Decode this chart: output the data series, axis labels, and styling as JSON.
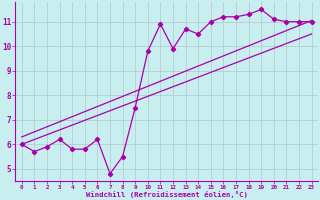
{
  "xlabel": "Windchill (Refroidissement éolien,°C)",
  "bg_color": "#c8eef0",
  "grid_color": "#b0c8cc",
  "line_color": "#aa00aa",
  "x_hours": [
    0,
    1,
    2,
    3,
    4,
    5,
    6,
    7,
    8,
    9,
    10,
    11,
    12,
    13,
    14,
    15,
    16,
    17,
    18,
    19,
    20,
    21,
    22,
    23
  ],
  "temp_data": [
    6.0,
    5.7,
    5.9,
    6.2,
    5.8,
    5.8,
    6.2,
    4.8,
    5.5,
    7.5,
    9.8,
    10.9,
    9.9,
    10.7,
    10.5,
    11.0,
    11.2,
    11.2,
    11.3,
    11.5,
    11.1,
    11.0,
    11.0,
    11.0
  ],
  "reg_line1": [
    [
      0,
      6.0
    ],
    [
      23,
      10.5
    ]
  ],
  "reg_line2": [
    [
      0,
      6.3
    ],
    [
      23,
      11.05
    ]
  ],
  "ylim": [
    4.5,
    11.8
  ],
  "xlim": [
    -0.5,
    23.5
  ],
  "yticks": [
    5,
    6,
    7,
    8,
    9,
    10,
    11
  ],
  "ytick_labels": [
    "5",
    "6",
    "7",
    "8",
    "9",
    "10",
    "11"
  ],
  "xtick_labels": [
    "0",
    "1",
    "2",
    "3",
    "4",
    "5",
    "6",
    "7",
    "8",
    "9",
    "10",
    "11",
    "12",
    "13",
    "14",
    "15",
    "16",
    "17",
    "18",
    "19",
    "20",
    "21",
    "22",
    "23"
  ]
}
